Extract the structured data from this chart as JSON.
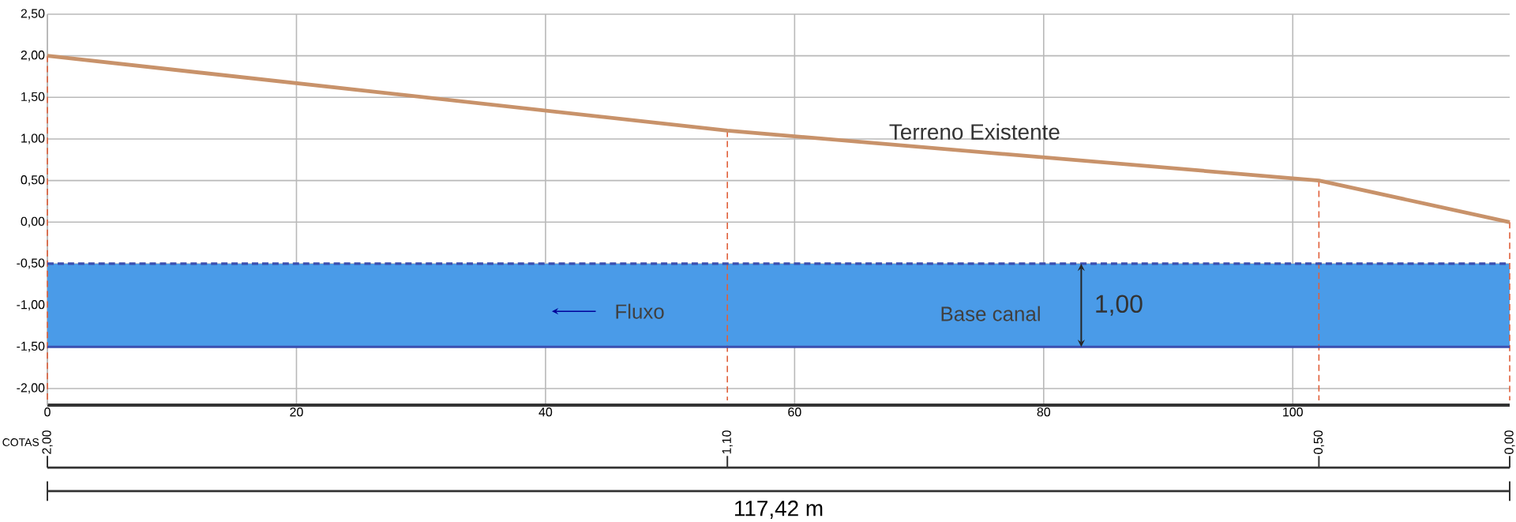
{
  "chart_data": {
    "type": "line",
    "xlim": [
      0,
      117.42
    ],
    "ylim": [
      -2.2,
      2.5
    ],
    "xticks": [
      0,
      20,
      40,
      60,
      80,
      100
    ],
    "yticks": [
      {
        "value": -2,
        "label": "-2,00"
      },
      {
        "value": -1.5,
        "label": "-1,50"
      },
      {
        "value": -1,
        "label": "-1,00"
      },
      {
        "value": -0.5,
        "label": "-0,50"
      },
      {
        "value": 0,
        "label": "0,00"
      },
      {
        "value": 0.5,
        "label": "0,50"
      },
      {
        "value": 1,
        "label": "1,00"
      },
      {
        "value": 1.5,
        "label": "1,50"
      },
      {
        "value": 2,
        "label": "2,00"
      },
      {
        "value": 2.5,
        "label": "2,50"
      }
    ],
    "grid": true,
    "series": [
      {
        "name": "Terreno Existente",
        "color": "#c8926a",
        "x": [
          0,
          54.6,
          102.1,
          117.42
        ],
        "values": [
          2.0,
          1.1,
          0.5,
          0.0
        ]
      }
    ],
    "marker": "none",
    "bands": [
      {
        "axis": "y",
        "from": -1.5,
        "to": -0.5,
        "label": "Base canal",
        "color": "#4a9be8"
      }
    ],
    "ref_lines": [
      {
        "axis": "x",
        "value": 0,
        "color": "#e0603a",
        "line_style": "dashed"
      },
      {
        "axis": "x",
        "value": 54.6,
        "color": "#e0603a",
        "line_style": "dashed"
      },
      {
        "axis": "x",
        "value": 102.1,
        "color": "#e0603a",
        "line_style": "dashed"
      },
      {
        "axis": "x",
        "value": 117.42,
        "color": "#e0603a",
        "line_style": "dashed"
      },
      {
        "axis": "y",
        "value": -0.5,
        "color": "#3a4fb0",
        "line_style": "dashed"
      },
      {
        "axis": "y",
        "value": -1.5,
        "color": "#3a4fb0",
        "line_style": "solid"
      }
    ],
    "annotations": [
      "COTAS",
      "117,42 m",
      "Fluxo",
      "1,00",
      "2,00",
      "1,10",
      "0,50",
      "0,00"
    ]
  }
}
